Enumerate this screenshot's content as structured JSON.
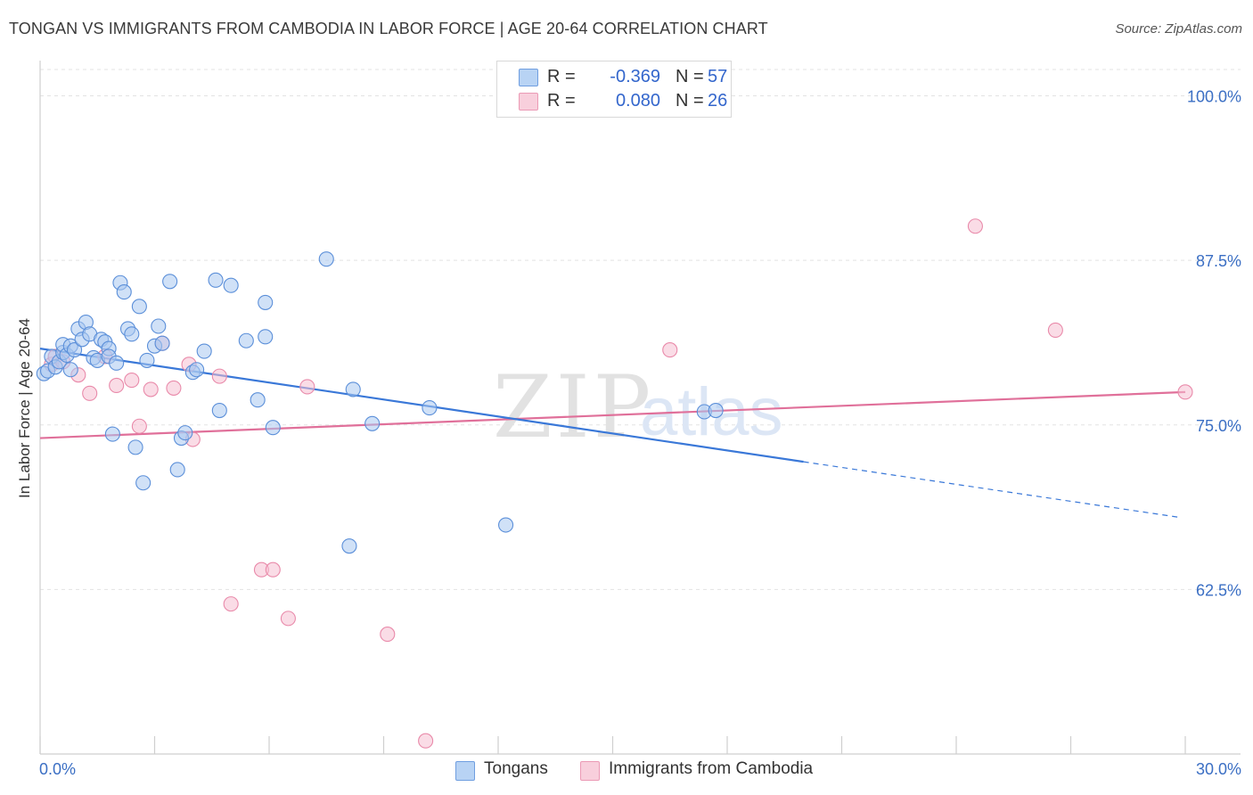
{
  "header": {
    "title": "TONGAN VS IMMIGRANTS FROM CAMBODIA IN LABOR FORCE | AGE 20-64 CORRELATION CHART",
    "source": "Source: ZipAtlas.com"
  },
  "legend": {
    "rows": [
      {
        "r_label": "R =",
        "r_value": "-0.369",
        "n_label": "N =",
        "n_value": "57"
      },
      {
        "r_label": "R =",
        "r_value": "0.080",
        "n_label": "N =",
        "n_value": "26"
      }
    ]
  },
  "bottom_legend": {
    "series1": "Tongans",
    "series2": "Immigrants from Cambodia"
  },
  "colors": {
    "series1_fill": "#a9c8f0",
    "series1_stroke": "#5b8fd9",
    "series1_line": "#3a78d8",
    "series2_fill": "#f5c0d2",
    "series2_stroke": "#e98aaa",
    "series2_line": "#e0709a",
    "tick_label": "#3b6fc4",
    "grid": "#e3e3e3"
  },
  "watermark": {
    "zip": "ZIP",
    "atlas": "atlas"
  },
  "chart_data": {
    "type": "scatter",
    "title": "TONGAN VS IMMIGRANTS FROM CAMBODIA IN LABOR FORCE | AGE 20-64 CORRELATION CHART",
    "xlabel": "",
    "ylabel": "In Labor Force | Age 20-64",
    "xlim": [
      0,
      30
    ],
    "ylim": [
      50,
      102
    ],
    "x_tick_labels": [
      "0.0%",
      "30.0%"
    ],
    "y_ticks": [
      62.5,
      75.0,
      87.5,
      100.0
    ],
    "y_tick_labels": [
      "62.5%",
      "75.0%",
      "87.5%",
      "100.0%"
    ],
    "series": [
      {
        "name": "Tongans",
        "r": -0.369,
        "n": 57,
        "trend": {
          "x_start": 0.0,
          "y_start": 80.8,
          "x_solid_end": 20.0,
          "y_solid_end": 72.2,
          "x_dash_end": 29.8,
          "y_dash_end": 68.0
        },
        "points": [
          [
            0.1,
            78.9
          ],
          [
            0.2,
            79.1
          ],
          [
            0.3,
            80.2
          ],
          [
            0.4,
            79.4
          ],
          [
            0.5,
            79.8
          ],
          [
            0.6,
            80.5
          ],
          [
            0.6,
            81.1
          ],
          [
            0.7,
            80.3
          ],
          [
            0.8,
            81.0
          ],
          [
            0.8,
            79.2
          ],
          [
            0.9,
            80.7
          ],
          [
            1.0,
            82.3
          ],
          [
            1.1,
            81.5
          ],
          [
            1.2,
            82.8
          ],
          [
            1.3,
            81.9
          ],
          [
            1.4,
            80.1
          ],
          [
            1.5,
            79.9
          ],
          [
            1.6,
            81.5
          ],
          [
            1.7,
            81.3
          ],
          [
            1.8,
            80.8
          ],
          [
            1.8,
            80.2
          ],
          [
            1.9,
            74.3
          ],
          [
            2.0,
            79.7
          ],
          [
            2.1,
            85.8
          ],
          [
            2.2,
            85.1
          ],
          [
            2.3,
            82.3
          ],
          [
            2.4,
            81.9
          ],
          [
            2.5,
            73.3
          ],
          [
            2.6,
            84.0
          ],
          [
            2.7,
            70.6
          ],
          [
            2.8,
            79.9
          ],
          [
            3.0,
            81.0
          ],
          [
            3.1,
            82.5
          ],
          [
            3.2,
            81.2
          ],
          [
            3.4,
            85.9
          ],
          [
            3.6,
            71.6
          ],
          [
            3.7,
            74.0
          ],
          [
            3.8,
            74.4
          ],
          [
            4.0,
            79.0
          ],
          [
            4.1,
            79.2
          ],
          [
            4.3,
            80.6
          ],
          [
            4.6,
            86.0
          ],
          [
            4.7,
            76.1
          ],
          [
            5.0,
            85.6
          ],
          [
            5.4,
            81.4
          ],
          [
            5.7,
            76.9
          ],
          [
            5.9,
            84.3
          ],
          [
            5.9,
            81.7
          ],
          [
            6.1,
            74.8
          ],
          [
            7.5,
            87.6
          ],
          [
            8.1,
            65.8
          ],
          [
            8.2,
            77.7
          ],
          [
            8.7,
            75.1
          ],
          [
            10.2,
            76.3
          ],
          [
            12.2,
            67.4
          ],
          [
            17.4,
            76.0
          ],
          [
            17.7,
            76.1
          ]
        ]
      },
      {
        "name": "Immigrants from Cambodia",
        "r": 0.08,
        "n": 26,
        "trend": {
          "x_start": 0.0,
          "y_start": 74.0,
          "x_end": 30.0,
          "y_end": 77.5
        },
        "points": [
          [
            0.3,
            79.6
          ],
          [
            0.4,
            80.2
          ],
          [
            0.6,
            79.8
          ],
          [
            1.0,
            78.8
          ],
          [
            1.3,
            77.4
          ],
          [
            1.7,
            80.2
          ],
          [
            2.0,
            78.0
          ],
          [
            2.4,
            78.4
          ],
          [
            2.6,
            74.9
          ],
          [
            2.9,
            77.7
          ],
          [
            3.2,
            81.2
          ],
          [
            3.5,
            77.8
          ],
          [
            3.9,
            79.6
          ],
          [
            4.0,
            73.9
          ],
          [
            4.7,
            78.7
          ],
          [
            5.0,
            61.4
          ],
          [
            5.8,
            64.0
          ],
          [
            6.1,
            64.0
          ],
          [
            6.5,
            60.3
          ],
          [
            7.0,
            77.9
          ],
          [
            9.1,
            59.1
          ],
          [
            10.1,
            51.0
          ],
          [
            16.5,
            80.7
          ],
          [
            24.5,
            90.1
          ],
          [
            26.6,
            82.2
          ],
          [
            30.0,
            77.5
          ]
        ]
      }
    ]
  }
}
